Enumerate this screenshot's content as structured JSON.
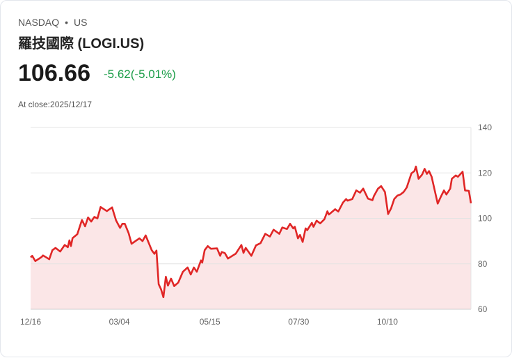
{
  "header": {
    "exchange": "NASDAQ",
    "separator": "•",
    "market": "US",
    "name": "羅技國際 (LOGI.US)"
  },
  "quote": {
    "price": "106.66",
    "change": "-5.62(-5.01%)",
    "at_close": "At close:2025/12/17"
  },
  "colors": {
    "line": "#e02626",
    "fill": "#fbe6e7",
    "change": "#1e9e4a"
  },
  "chart_data": {
    "type": "area",
    "title": "羅技國際 (LOGI.US)",
    "xlabel": "",
    "ylabel": "",
    "ylim": [
      60,
      140
    ],
    "xlim": [
      0,
      253
    ],
    "yticks": [
      140,
      120,
      100,
      80,
      60
    ],
    "xticks": [
      {
        "x": 0,
        "label": "12/16"
      },
      {
        "x": 51,
        "label": "03/04"
      },
      {
        "x": 103,
        "label": "05/15"
      },
      {
        "x": 154,
        "label": "07/30"
      },
      {
        "x": 205,
        "label": "10/10"
      }
    ],
    "grid": true,
    "x": [
      0,
      0.9,
      2.7,
      6.3,
      7.1,
      10.7,
      12.5,
      14.3,
      17,
      19.6,
      21.4,
      22.3,
      23.2,
      24.1,
      26.8,
      29.5,
      31.3,
      33,
      34.8,
      36.6,
      38.4,
      40.2,
      43.8,
      46.8,
      49.1,
      51.4,
      52.7,
      54.1,
      56.3,
      58,
      62.5,
      64.3,
      66.1,
      69.6,
      71.1,
      72.3,
      73.6,
      75,
      76.3,
      77.7,
      78.9,
      80.7,
      82.5,
      84.8,
      87.5,
      90.2,
      92,
      93.8,
      95.5,
      97.9,
      98.6,
      100,
      101.8,
      103.6,
      107.1,
      108.9,
      109.8,
      111.6,
      113.4,
      117.9,
      121.1,
      122.3,
      123.6,
      126.8,
      129.5,
      132.1,
      134.8,
      137.5,
      139.6,
      142.9,
      144.6,
      147.3,
      149.1,
      150.9,
      151.8,
      153.6,
      154.8,
      156.3,
      158,
      158.9,
      161.6,
      162.5,
      164.3,
      166.4,
      168.8,
      170.5,
      171.4,
      175,
      176.8,
      179.5,
      181.3,
      182.1,
      184.8,
      187.1,
      189.3,
      191.1,
      193.8,
      196.4,
      197.3,
      199.6,
      201.4,
      203.6,
      205.4,
      207.1,
      208.9,
      210.7,
      212.5,
      214.3,
      216.1,
      218.8,
      220.5,
      221.4,
      222.9,
      225,
      226.4,
      227.7,
      228.9,
      230.4,
      232.1,
      233.9,
      235.7,
      237.5,
      238.9,
      241.1,
      242,
      244.3,
      245.5,
      248.2,
      249.6,
      251.8,
      253
    ],
    "values": [
      82.8,
      83.5,
      81.2,
      83,
      83.7,
      82,
      86,
      87,
      85.4,
      88.3,
      87.3,
      90.3,
      87.8,
      91.3,
      93,
      99.3,
      96.5,
      100.4,
      98.6,
      100.6,
      100,
      105,
      103.2,
      104.8,
      99.1,
      95.8,
      97.6,
      97.6,
      93.5,
      88.8,
      91.2,
      90,
      92.5,
      86,
      84.4,
      85.8,
      71,
      68.7,
      65.3,
      74.3,
      70.4,
      73.5,
      70.2,
      71.7,
      76.5,
      78.4,
      75.3,
      78.4,
      76.5,
      81.5,
      80.5,
      86,
      87.8,
      86.6,
      86.8,
      83.5,
      85.2,
      84.7,
      82.3,
      84.5,
      88.3,
      84.8,
      87,
      83.5,
      88.1,
      89.1,
      93.2,
      92,
      95,
      93.2,
      96,
      95.3,
      97.6,
      95.6,
      96.3,
      91.2,
      92.7,
      89.6,
      95.6,
      94.8,
      98,
      96.3,
      99,
      97.8,
      99.6,
      103.1,
      101.7,
      104,
      103,
      107,
      108.5,
      107.8,
      108.5,
      112.3,
      111.3,
      113.1,
      108.7,
      108,
      109.9,
      113.1,
      114.2,
      111.6,
      101.9,
      104.4,
      108.5,
      110,
      110.5,
      111.6,
      113.6,
      119.8,
      120.8,
      122.8,
      117.4,
      119.3,
      121.8,
      119.6,
      120.8,
      118.3,
      112.6,
      106.5,
      109.5,
      112.3,
      110.5,
      113.1,
      117.4,
      118.9,
      118.3,
      120.5,
      112.3,
      112.1,
      106.66
    ]
  }
}
